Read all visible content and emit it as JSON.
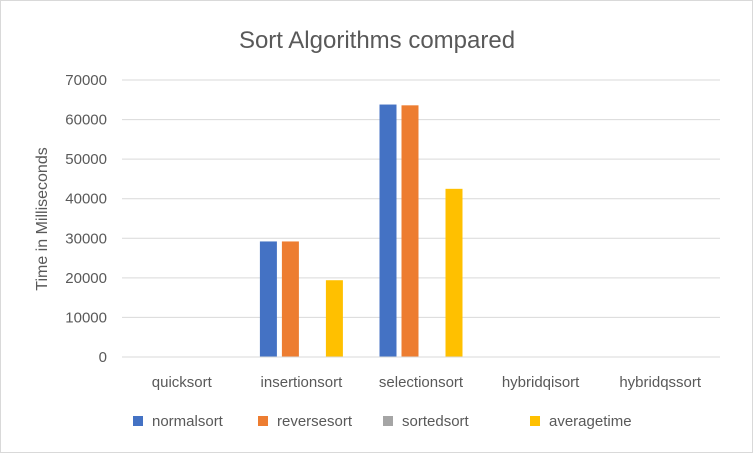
{
  "chart_data": {
    "type": "bar",
    "title": "Sort Algorithms compared",
    "xlabel": "",
    "ylabel": "Time in Milliseconds",
    "ylim": [
      0,
      70000
    ],
    "yticks": [
      "0",
      "10000",
      "20000",
      "30000",
      "40000",
      "50000",
      "60000",
      "70000"
    ],
    "grid": true,
    "legend_position": "bottom",
    "categories": [
      "quicksort",
      "insertionsort",
      "selectionsort",
      "hybridqisort",
      "hybridqssort"
    ],
    "series": [
      {
        "name": "normalsort",
        "color": "#4472c4",
        "values": [
          0,
          29200,
          63800,
          0,
          0
        ]
      },
      {
        "name": "reversesort",
        "color": "#ed7d31",
        "values": [
          0,
          29200,
          63600,
          0,
          0
        ]
      },
      {
        "name": "sortedsort",
        "color": "#a5a5a5",
        "values": [
          0,
          0,
          0,
          0,
          0
        ]
      },
      {
        "name": "averagetime",
        "color": "#ffc000",
        "values": [
          0,
          19400,
          42500,
          0,
          0
        ]
      }
    ]
  }
}
